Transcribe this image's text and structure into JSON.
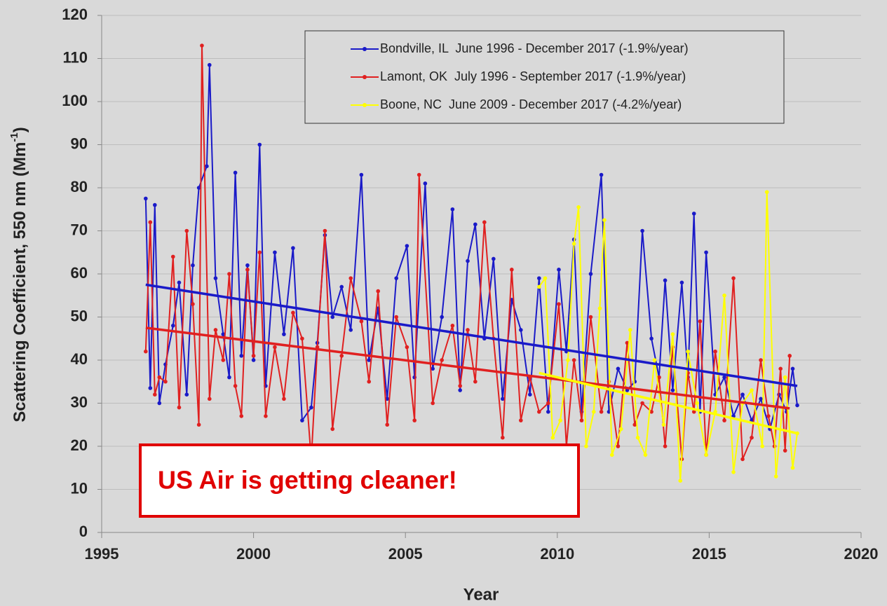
{
  "chart_data": {
    "type": "line",
    "x_label": "Year",
    "y_label": "Scattering Coefficient, 550 nm (Mm",
    "y_label_sup": "-1",
    "y_label_end": ")",
    "annotation": "US Air is getting cleaner!",
    "xlim": [
      1995,
      2020
    ],
    "xticks": [
      1995,
      2000,
      2005,
      2010,
      2015,
      2020
    ],
    "ylim": [
      0,
      120
    ],
    "yticks": [
      0,
      10,
      20,
      30,
      40,
      50,
      60,
      70,
      80,
      90,
      100,
      110,
      120
    ],
    "grid": true,
    "legend": "top-right",
    "series": [
      {
        "name": "Bondville, IL  June 1996 - December 2017 (-1.9%/year)",
        "color": "#1a1ac8",
        "x": [
          1996.45,
          1996.6,
          1996.75,
          1996.9,
          1997.1,
          1997.35,
          1997.55,
          1997.8,
          1998.0,
          1998.2,
          1998.46,
          1998.55,
          1998.75,
          1999.0,
          1999.2,
          1999.4,
          1999.6,
          1999.8,
          2000.0,
          2000.2,
          2000.4,
          2000.7,
          2001.0,
          2001.3,
          2001.6,
          2001.9,
          2002.1,
          2002.35,
          2002.6,
          2002.9,
          2003.2,
          2003.55,
          2003.8,
          2004.1,
          2004.4,
          2004.7,
          2005.05,
          2005.3,
          2005.65,
          2005.9,
          2006.2,
          2006.55,
          2006.8,
          2007.05,
          2007.3,
          2007.6,
          2007.9,
          2008.2,
          2008.5,
          2008.8,
          2009.1,
          2009.4,
          2009.7,
          2010.05,
          2010.3,
          2010.55,
          2010.8,
          2011.1,
          2011.45,
          2011.7,
          2012.0,
          2012.3,
          2012.55,
          2012.8,
          2013.1,
          2013.35,
          2013.55,
          2013.8,
          2014.1,
          2014.3,
          2014.5,
          2014.7,
          2014.9,
          2015.2,
          2015.5,
          2015.8,
          2016.1,
          2016.4,
          2016.7,
          2017.0,
          2017.3,
          2017.55,
          2017.75,
          2017.9
        ],
        "values": [
          77.5,
          33.5,
          76,
          30,
          39,
          48,
          58,
          32,
          62,
          80,
          85,
          108.5,
          59,
          46,
          36,
          83.5,
          41,
          62,
          40,
          90,
          34,
          65,
          46,
          66,
          26,
          29,
          44,
          69,
          50,
          57,
          47,
          83,
          40,
          52,
          31,
          59,
          66.5,
          36,
          81,
          38,
          50,
          75,
          33,
          63,
          71.5,
          45,
          63.5,
          31,
          54,
          47,
          32,
          59,
          28,
          61,
          42,
          68,
          28,
          60,
          83,
          28,
          38,
          33,
          35,
          70,
          45,
          36,
          58.5,
          33,
          58,
          36,
          74,
          28,
          65,
          32,
          36,
          27,
          32,
          26,
          31,
          24,
          32,
          28,
          38,
          29.5
        ],
        "trend": {
          "x": [
            1996.45,
            2017.9
          ],
          "values": [
            57.5,
            34
          ]
        }
      },
      {
        "name": "Lamont, OK  July 1996 - September 2017 (-1.9%/year)",
        "color": "#e02020",
        "x": [
          1996.45,
          1996.6,
          1996.75,
          1996.9,
          1997.1,
          1997.35,
          1997.55,
          1997.8,
          1998.0,
          1998.2,
          1998.3,
          1998.55,
          1998.75,
          1999.0,
          1999.2,
          1999.4,
          1999.6,
          1999.8,
          2000.0,
          2000.2,
          2000.4,
          2000.7,
          2001.0,
          2001.3,
          2001.6,
          2001.9,
          2002.1,
          2002.35,
          2002.6,
          2002.9,
          2003.2,
          2003.55,
          2003.8,
          2004.1,
          2004.4,
          2004.7,
          2005.05,
          2005.3,
          2005.45,
          2005.9,
          2006.2,
          2006.55,
          2006.8,
          2007.05,
          2007.3,
          2007.6,
          2007.9,
          2008.2,
          2008.5,
          2008.8,
          2009.1,
          2009.4,
          2009.7,
          2010.05,
          2010.3,
          2010.55,
          2010.8,
          2011.1,
          2011.45,
          2011.7,
          2012.0,
          2012.3,
          2012.55,
          2012.8,
          2013.1,
          2013.35,
          2013.55,
          2013.8,
          2014.1,
          2014.3,
          2014.5,
          2014.7,
          2014.9,
          2015.2,
          2015.5,
          2015.8,
          2016.1,
          2016.4,
          2016.7,
          2016.95,
          2017.15,
          2017.35,
          2017.5,
          2017.65
        ],
        "values": [
          42,
          72,
          32,
          36,
          35,
          64,
          29,
          70,
          53,
          25,
          113,
          31,
          47,
          40,
          60,
          34,
          27,
          61,
          41,
          65,
          27,
          43,
          31,
          51,
          45,
          17,
          43,
          70,
          24,
          41,
          59,
          49,
          35,
          56,
          25,
          50,
          43,
          26,
          83,
          30,
          40,
          48,
          34,
          47,
          35,
          72,
          45,
          22,
          61,
          26,
          36,
          28,
          30,
          53,
          20,
          40,
          26,
          50,
          28,
          35,
          20,
          44,
          25,
          30,
          28,
          36,
          20,
          43,
          17,
          37,
          28,
          49,
          18,
          42,
          26,
          59,
          17,
          22,
          40,
          27,
          20,
          38,
          19,
          41
        ],
        "trend": {
          "x": [
            1996.45,
            2017.65
          ],
          "values": [
            47.5,
            28.8
          ]
        }
      },
      {
        "name": "Boone, NC  June 2009 - December 2017 (-4.2%/year)",
        "color": "#ffff00",
        "x": [
          2009.4,
          2009.6,
          2009.85,
          2010.1,
          2010.35,
          2010.55,
          2010.7,
          2010.95,
          2011.2,
          2011.4,
          2011.55,
          2011.8,
          2012.1,
          2012.4,
          2012.65,
          2012.9,
          2013.2,
          2013.5,
          2013.8,
          2014.05,
          2014.3,
          2014.6,
          2014.9,
          2015.2,
          2015.5,
          2015.8,
          2016.1,
          2016.4,
          2016.75,
          2016.9,
          2017.2,
          2017.5,
          2017.75,
          2017.9
        ],
        "values": [
          57,
          59,
          22,
          26,
          40,
          67,
          75.5,
          20,
          28,
          52,
          72.5,
          18,
          24,
          47,
          22,
          18,
          40,
          25,
          46,
          12,
          42,
          30,
          18,
          28,
          55,
          14,
          30,
          33,
          20,
          79,
          13,
          36,
          15,
          23
        ],
        "trend": {
          "x": [
            2009.4,
            2017.9
          ],
          "values": [
            37,
            23
          ]
        }
      }
    ]
  }
}
